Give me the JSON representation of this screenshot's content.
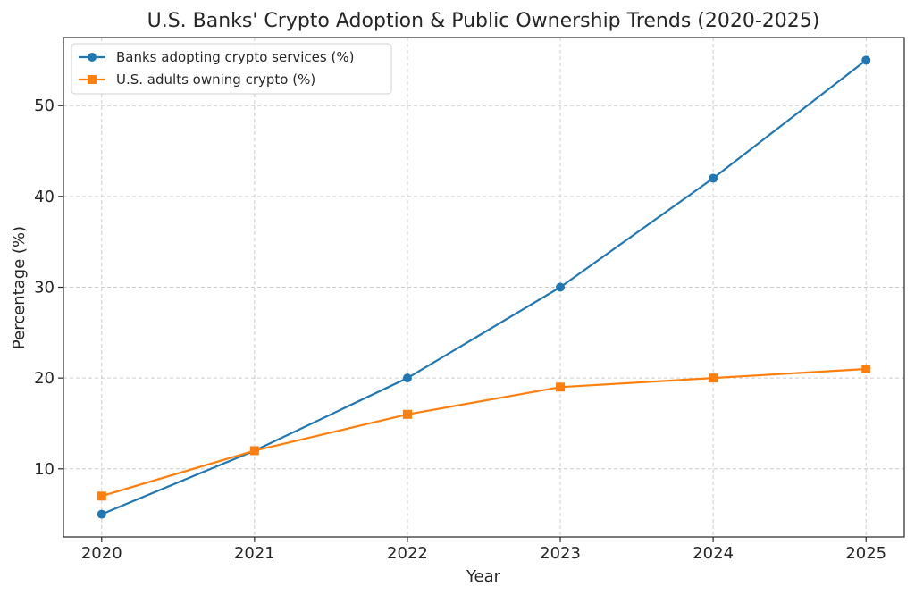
{
  "chart_data": {
    "type": "line",
    "title": "U.S. Banks' Crypto Adoption & Public Ownership Trends (2020-2025)",
    "xlabel": "Year",
    "ylabel": "Percentage (%)",
    "x": [
      2020,
      2021,
      2022,
      2023,
      2024,
      2025
    ],
    "x_tick_labels": [
      "2020",
      "2021",
      "2022",
      "2023",
      "2024",
      "2025"
    ],
    "y_ticks": [
      10,
      20,
      30,
      40,
      50
    ],
    "y_tick_labels": [
      "10",
      "20",
      "30",
      "40",
      "50"
    ],
    "xlim": [
      2019.75,
      2025.25
    ],
    "ylim": [
      2.5,
      57.5
    ],
    "grid": true,
    "legend_position": "top-left",
    "series": [
      {
        "name": "Banks adopting crypto services (%)",
        "values": [
          5,
          12,
          20,
          30,
          42,
          55
        ],
        "color": "#1f77b4",
        "marker": "circle"
      },
      {
        "name": "U.S. adults owning crypto (%)",
        "values": [
          7,
          12,
          16,
          19,
          20,
          21
        ],
        "color": "#ff7f0e",
        "marker": "square"
      }
    ]
  }
}
